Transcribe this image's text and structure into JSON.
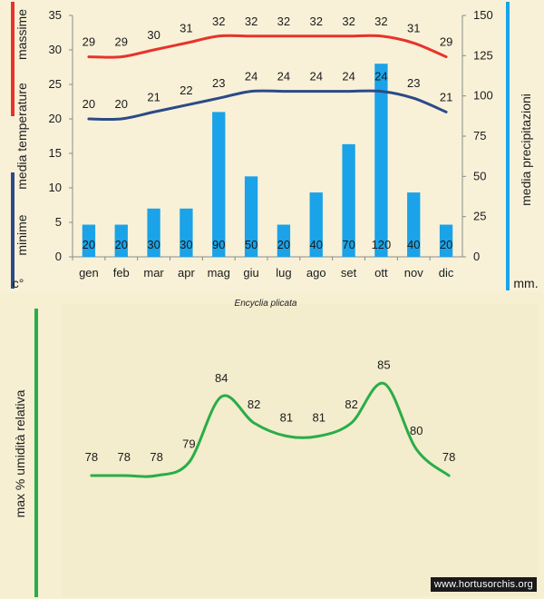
{
  "colors": {
    "max_line": "#e8332a",
    "min_line": "#2b4a86",
    "precip_bar": "#1aa3e8",
    "humidity_line": "#27ae47",
    "background": "#f6efd2"
  },
  "chart_data": [
    {
      "type": "bar+line",
      "title": "",
      "categories": [
        "gen",
        "feb",
        "mar",
        "apr",
        "mag",
        "giu",
        "lug",
        "ago",
        "set",
        "ott",
        "nov",
        "dic"
      ],
      "series": [
        {
          "name": "massime",
          "kind": "line",
          "axis": "left",
          "values": [
            29,
            29,
            30,
            31,
            32,
            32,
            32,
            32,
            32,
            32,
            31,
            29
          ]
        },
        {
          "name": "minime",
          "kind": "line",
          "axis": "left",
          "values": [
            20,
            20,
            21,
            22,
            23,
            24,
            24,
            24,
            24,
            24,
            23,
            21
          ]
        },
        {
          "name": "media precipitazioni",
          "kind": "bar",
          "axis": "right",
          "values": [
            20,
            20,
            30,
            30,
            90,
            50,
            20,
            40,
            70,
            120,
            40,
            20
          ]
        }
      ],
      "y_left": {
        "ylim": [
          0,
          35
        ],
        "ticks": [
          "0",
          "5",
          "10",
          "15",
          "20",
          "25",
          "30",
          "35"
        ]
      },
      "y_right": {
        "ylim": [
          0,
          150
        ],
        "ticks": [
          "0",
          "25",
          "50",
          "75",
          "100",
          "125",
          "150"
        ]
      },
      "left_label": {
        "max_word": "massime",
        "mid_word": "media  temperature",
        "min_word": "minime",
        "unit": "c°"
      },
      "right_label": {
        "title": "media  precipitazioni",
        "unit": "mm."
      }
    },
    {
      "type": "line",
      "title": "Encyclia plicata",
      "categories": [
        "gen",
        "feb",
        "mar",
        "apr",
        "mag",
        "giu",
        "lug",
        "ago",
        "set",
        "ott",
        "nov",
        "dic"
      ],
      "series": [
        {
          "name": "max % umidità relativa",
          "values": [
            78,
            78,
            78,
            79,
            84,
            82,
            81,
            81,
            82,
            85,
            80,
            78
          ]
        }
      ],
      "ylabel": "max  %  umidità relativa",
      "ylim": [
        70,
        90
      ]
    }
  ],
  "watermark": "www.hortusorchis.org"
}
